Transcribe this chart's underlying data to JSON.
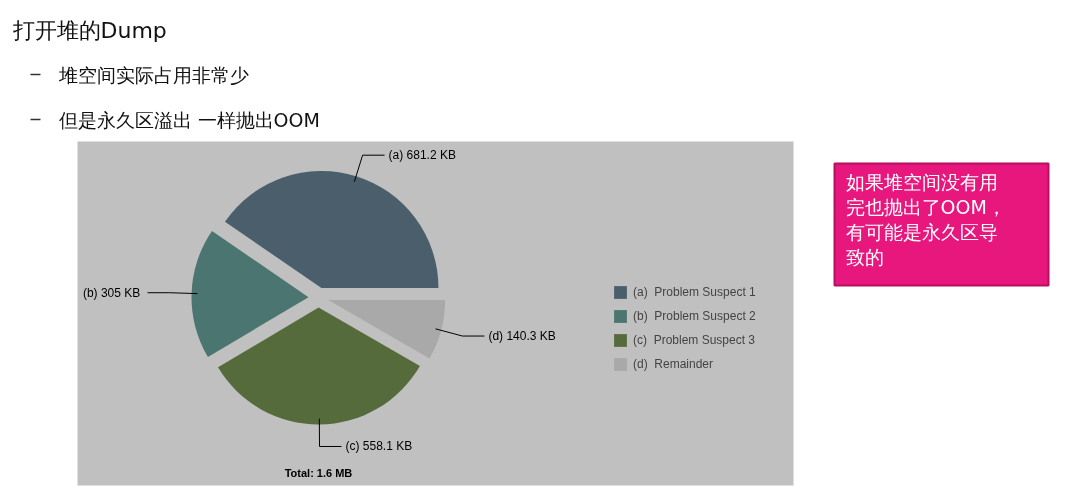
{
  "chart_data": {
    "type": "pie",
    "title": "打开堆的Dump",
    "categories": [
      "(a)  Problem Suspect 1",
      "(b)  Problem Suspect 2",
      "(c)  Problem Suspect 3",
      "(d)  Remainder"
    ],
    "values": [
      681.2,
      305,
      558.1,
      140.3
    ],
    "colors": [
      "#4a5f6b",
      "#4b7570",
      "#566b3c",
      "#a9a9a9"
    ],
    "value_labels": [
      "(a)  681.2 KB",
      "(b)  305 KB",
      "(c)  558.1 KB",
      "(d)  140.3 KB"
    ],
    "legend": "right",
    "annotations": [
      "堆空间实际占用非常少",
      "但是永久区溢出 一样抛出OOM",
      "Total: 1.6 MB",
      "如果堆空间没有用完也抛出了OOM，有可能是永久区导致的"
    ]
  }
}
